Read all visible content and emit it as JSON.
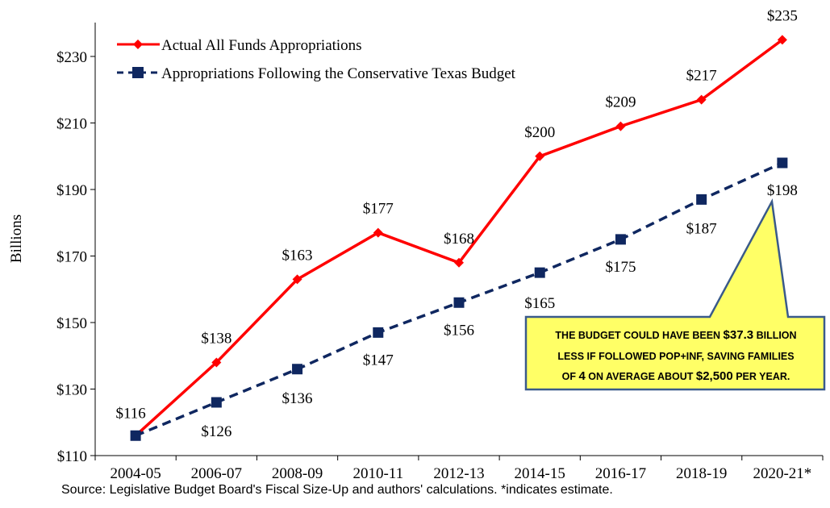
{
  "chart_data": {
    "type": "line",
    "categories": [
      "2004-05",
      "2006-07",
      "2008-09",
      "2010-11",
      "2012-13",
      "2014-15",
      "2016-17",
      "2018-19",
      "2020-21*"
    ],
    "ylabel": "Billions",
    "ylim": [
      110,
      235
    ],
    "yticks": [
      110,
      130,
      150,
      170,
      190,
      210,
      230
    ],
    "ytick_labels": [
      "$110",
      "$130",
      "$150",
      "$170",
      "$190",
      "$210",
      "$230"
    ],
    "grid": false,
    "legend_position": "top-left",
    "series": [
      {
        "name": "Actual All Funds Appropriations",
        "color": "#ff0000",
        "marker": "diamond",
        "line_style": "solid",
        "values": [
          116,
          138,
          163,
          177,
          168,
          200,
          209,
          217,
          235
        ],
        "labels": [
          "$116",
          "$138",
          "$163",
          "$177",
          "$168",
          "$200",
          "$209",
          "$217",
          "$235"
        ]
      },
      {
        "name": "Appropriations Following the Conservative Texas Budget",
        "color": "#0f2760",
        "marker": "square",
        "line_style": "dashed",
        "values": [
          116,
          126,
          136,
          147,
          156,
          165,
          175,
          187,
          198
        ],
        "labels": [
          "",
          "$126",
          "$136",
          "$147",
          "$156",
          "$165",
          "$175",
          "$187",
          "$198"
        ]
      }
    ],
    "callout": {
      "line1": [
        "THE BUDGET COULD HAVE BEEN ",
        "$37.3",
        " BILLION"
      ],
      "line2": "LESS IF FOLLOWED POP+INF, SAVING FAMILIES",
      "line3": [
        "OF ",
        "4",
        " ON AVERAGE ABOUT ",
        "$2,500",
        " PER YEAR."
      ],
      "fill": "#ffff66",
      "border": "#3a5a8a"
    },
    "source": "Source: Legislative Budget Board's Fiscal Size-Up and authors' calculations. *indicates estimate."
  }
}
